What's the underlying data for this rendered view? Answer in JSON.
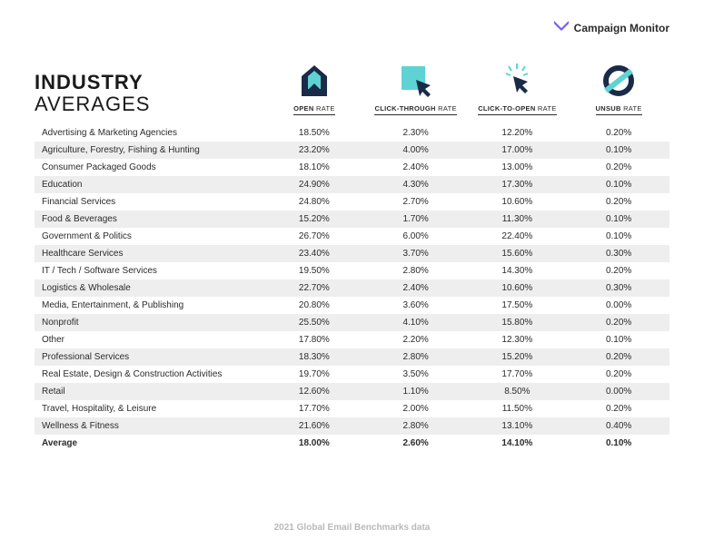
{
  "brand": {
    "name": "Campaign Monitor",
    "logo_color": "#7856ff"
  },
  "title": {
    "line1": "INDUSTRY",
    "line2": "AVERAGES"
  },
  "colors": {
    "background": "#ffffff",
    "row_stripe": "#eeeeee",
    "text": "#2b2b2b",
    "icon_dark": "#1a2b4a",
    "icon_accent": "#5fd3d3",
    "footer": "#b9b9b9"
  },
  "metrics": [
    {
      "key": "open",
      "bold": "OPEN",
      "light": " RATE",
      "icon": "open"
    },
    {
      "key": "ctr",
      "bold": "CLICK-THROUGH",
      "light": " RATE",
      "icon": "click"
    },
    {
      "key": "cto",
      "bold": "CLICK-TO-OPEN",
      "light": " RATE",
      "icon": "spark"
    },
    {
      "key": "unsub",
      "bold": "UNSUB",
      "light": " RATE",
      "icon": "unsub"
    }
  ],
  "rows": [
    {
      "industry": "Advertising & Marketing Agencies",
      "open": "18.50%",
      "ctr": "2.30%",
      "cto": "12.20%",
      "unsub": "0.20%"
    },
    {
      "industry": "Agriculture, Forestry, Fishing & Hunting",
      "open": "23.20%",
      "ctr": "4.00%",
      "cto": "17.00%",
      "unsub": "0.10%"
    },
    {
      "industry": "Consumer Packaged Goods",
      "open": "18.10%",
      "ctr": "2.40%",
      "cto": "13.00%",
      "unsub": "0.20%"
    },
    {
      "industry": "Education",
      "open": "24.90%",
      "ctr": "4.30%",
      "cto": "17.30%",
      "unsub": "0.10%"
    },
    {
      "industry": "Financial Services",
      "open": "24.80%",
      "ctr": "2.70%",
      "cto": "10.60%",
      "unsub": "0.20%"
    },
    {
      "industry": "Food & Beverages",
      "open": "15.20%",
      "ctr": "1.70%",
      "cto": "11.30%",
      "unsub": "0.10%"
    },
    {
      "industry": "Government & Politics",
      "open": "26.70%",
      "ctr": "6.00%",
      "cto": "22.40%",
      "unsub": "0.10%"
    },
    {
      "industry": "Healthcare Services",
      "open": "23.40%",
      "ctr": "3.70%",
      "cto": "15.60%",
      "unsub": "0.30%"
    },
    {
      "industry": "IT / Tech / Software Services",
      "open": "19.50%",
      "ctr": "2.80%",
      "cto": "14.30%",
      "unsub": "0.20%"
    },
    {
      "industry": "Logistics & Wholesale",
      "open": "22.70%",
      "ctr": "2.40%",
      "cto": "10.60%",
      "unsub": "0.30%"
    },
    {
      "industry": "Media, Entertainment, & Publishing",
      "open": "20.80%",
      "ctr": "3.60%",
      "cto": "17.50%",
      "unsub": "0.00%"
    },
    {
      "industry": "Nonprofit",
      "open": "25.50%",
      "ctr": "4.10%",
      "cto": "15.80%",
      "unsub": "0.20%"
    },
    {
      "industry": "Other",
      "open": "17.80%",
      "ctr": "2.20%",
      "cto": "12.30%",
      "unsub": "0.10%"
    },
    {
      "industry": "Professional Services",
      "open": "18.30%",
      "ctr": "2.80%",
      "cto": "15.20%",
      "unsub": "0.20%"
    },
    {
      "industry": "Real Estate, Design & Construction Activities",
      "open": "19.70%",
      "ctr": "3.50%",
      "cto": "17.70%",
      "unsub": "0.20%"
    },
    {
      "industry": "Retail",
      "open": "12.60%",
      "ctr": "1.10%",
      "cto": "8.50%",
      "unsub": "0.00%"
    },
    {
      "industry": "Travel, Hospitality, & Leisure",
      "open": "17.70%",
      "ctr": "2.00%",
      "cto": "11.50%",
      "unsub": "0.20%"
    },
    {
      "industry": "Wellness & Fitness",
      "open": "21.60%",
      "ctr": "2.80%",
      "cto": "13.10%",
      "unsub": "0.40%"
    }
  ],
  "average": {
    "industry": "Average",
    "open": "18.00%",
    "ctr": "2.60%",
    "cto": "14.10%",
    "unsub": "0.10%"
  },
  "footer": "2021 Global Email Benchmarks data",
  "typography": {
    "title_fontsize": 22,
    "row_fontsize": 10,
    "metric_label_fontsize": 7.5,
    "footer_fontsize": 10
  }
}
